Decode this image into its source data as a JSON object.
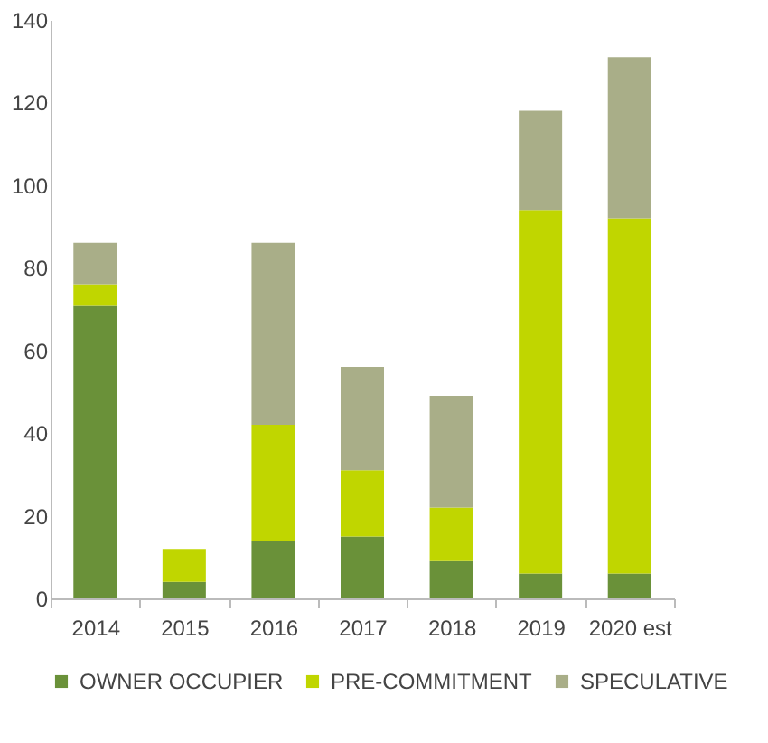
{
  "chart_data": {
    "type": "bar",
    "stacked": true,
    "categories": [
      "2014",
      "2015",
      "2016",
      "2017",
      "2018",
      "2019",
      "2020 est"
    ],
    "series": [
      {
        "name": "OWNER OCCUPIER",
        "color": "#6a9139",
        "values": [
          71,
          4,
          14,
          15,
          9,
          6,
          6
        ]
      },
      {
        "name": "PRE-COMMITMENT",
        "color": "#c0d600",
        "values": [
          5,
          8,
          28,
          16,
          13,
          88,
          86
        ]
      },
      {
        "name": "SPECULATIVE",
        "color": "#a9ae88",
        "values": [
          10,
          0,
          44,
          25,
          27,
          24,
          39
        ]
      }
    ],
    "ylim": [
      0,
      140
    ],
    "yticks": [
      0,
      20,
      40,
      60,
      80,
      100,
      120,
      140
    ],
    "grid": false,
    "legend": "bottom"
  }
}
